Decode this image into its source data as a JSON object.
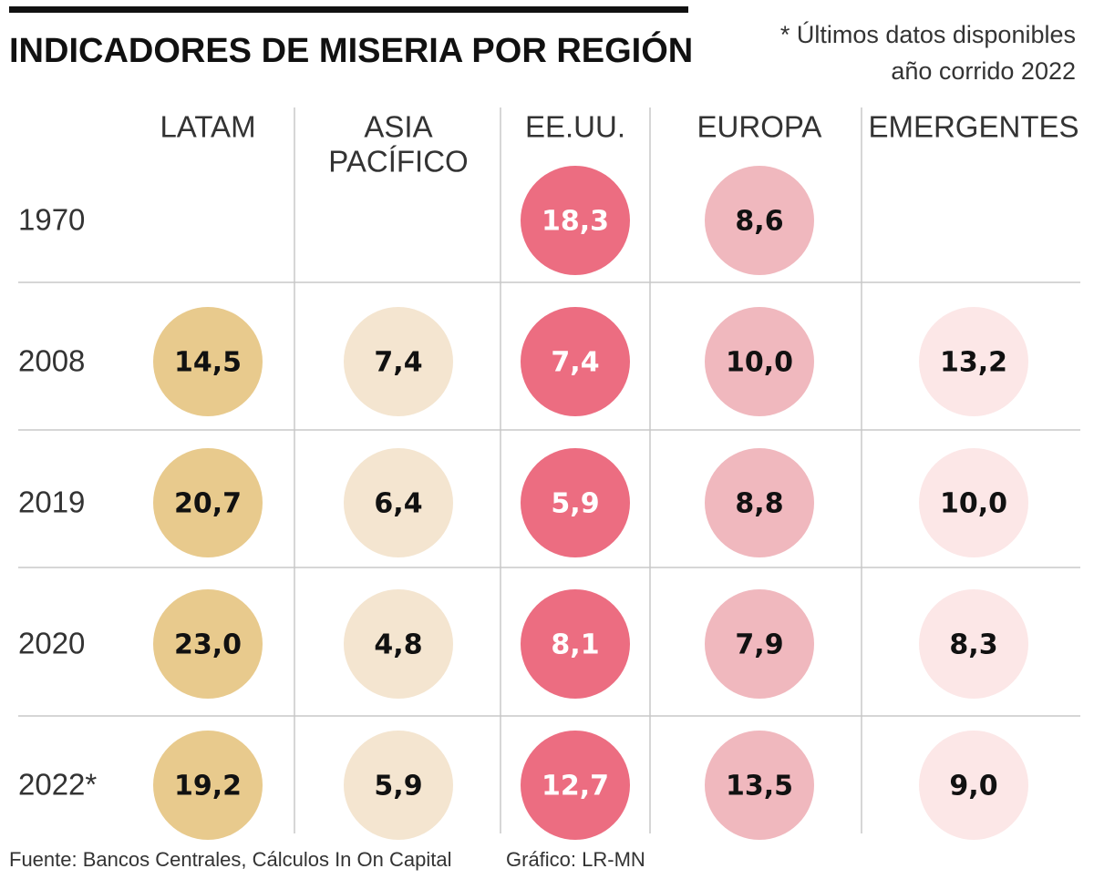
{
  "header": {
    "title": "INDICADORES DE MISERIA POR REGIÓN",
    "note": [
      "* Últimos datos disponibles",
      "año corrido 2022"
    ]
  },
  "table": {
    "columns": [
      [
        "LATAM"
      ],
      [
        "ASIA",
        "PACÍFICO"
      ],
      [
        "EE.UU."
      ],
      [
        "EUROPA"
      ],
      [
        "EMERGENTES"
      ]
    ],
    "rows": [
      {
        "year": "1970",
        "cells": [
          null,
          null,
          "18,3",
          "8,6",
          null
        ]
      },
      {
        "year": "2008",
        "cells": [
          "14,5",
          "7,4",
          "7,4",
          "10,0",
          "13,2"
        ]
      },
      {
        "year": "2019",
        "cells": [
          "20,7",
          "6,4",
          "5,9",
          "8,8",
          "10,0"
        ]
      },
      {
        "year": "2020",
        "cells": [
          "23,0",
          "4,8",
          "8,1",
          "7,9",
          "8,3"
        ]
      },
      {
        "year": "2022*",
        "cells": [
          "19,2",
          "5,9",
          "12,7",
          "13,5",
          "9,0"
        ]
      }
    ]
  },
  "footer": {
    "source": "Fuente: Bancos Centrales, Cálculos In On Capital",
    "credit": "Gráfico: LR-MN"
  }
}
